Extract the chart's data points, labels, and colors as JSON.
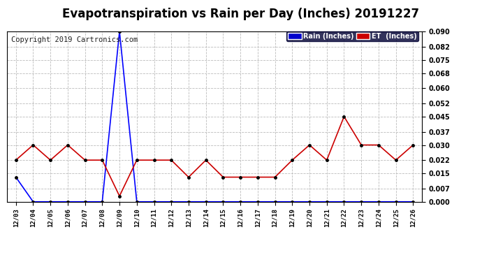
{
  "title": "Evapotranspiration vs Rain per Day (Inches) 20191227",
  "copyright": "Copyright 2019 Cartronics.com",
  "dates": [
    "12/03",
    "12/04",
    "12/05",
    "12/06",
    "12/07",
    "12/08",
    "12/09",
    "12/10",
    "12/11",
    "12/12",
    "12/13",
    "12/14",
    "12/15",
    "12/16",
    "12/17",
    "12/18",
    "12/19",
    "12/20",
    "12/21",
    "12/22",
    "12/23",
    "12/24",
    "12/25",
    "12/26"
  ],
  "rain": [
    0.013,
    0.0,
    0.0,
    0.0,
    0.0,
    0.0,
    0.09,
    0.0,
    0.0,
    0.0,
    0.0,
    0.0,
    0.0,
    0.0,
    0.0,
    0.0,
    0.0,
    0.0,
    0.0,
    0.0,
    0.0,
    0.0,
    0.0,
    0.0
  ],
  "et": [
    0.022,
    0.03,
    0.022,
    0.03,
    0.022,
    0.022,
    0.003,
    0.022,
    0.022,
    0.022,
    0.013,
    0.022,
    0.013,
    0.013,
    0.013,
    0.013,
    0.022,
    0.03,
    0.022,
    0.045,
    0.03,
    0.03,
    0.022,
    0.03
  ],
  "rain_color": "#0000ff",
  "et_color": "#cc0000",
  "marker_color": "#000000",
  "bg_color": "#ffffff",
  "grid_color": "#bbbbbb",
  "ylim": [
    0.0,
    0.09
  ],
  "yticks": [
    0.0,
    0.007,
    0.015,
    0.022,
    0.03,
    0.037,
    0.045,
    0.052,
    0.06,
    0.068,
    0.075,
    0.082,
    0.09
  ],
  "title_fontsize": 12,
  "copyright_fontsize": 7.5,
  "legend_rain_label": "Rain (Inches)",
  "legend_et_label": "ET  (Inches)",
  "legend_rain_bg": "#0000cc",
  "legend_et_bg": "#cc0000",
  "legend_text_color": "#ffffff"
}
